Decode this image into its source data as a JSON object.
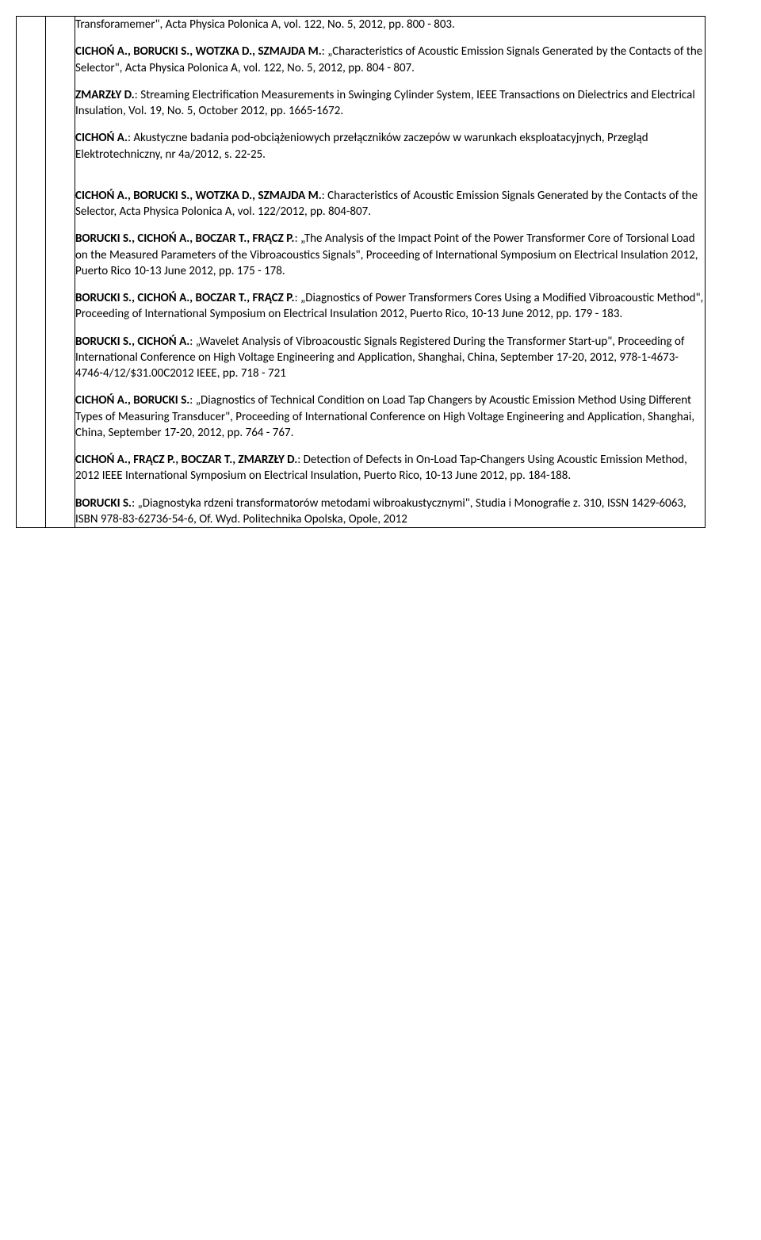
{
  "refs": [
    {
      "authors_html": "",
      "tail": "Transforamemer\", Acta Physica Polonica A, vol. 122, No. 5, 2012, pp. 800 - 803."
    },
    {
      "authors": "CICHOŃ A., BORUCKI S., WOTZKA D., SZMAJDA M.",
      "tail": ": „Characteristics of Acoustic Emission Signals Generated by the Contacts of the Selector\", Acta Physica Polonica A, vol. 122, No. 5, 2012, pp. 804 - 807."
    },
    {
      "authors": "ZMARZŁY D.",
      "tail": ": Streaming Electrification Measurements in Swinging Cylinder System, IEEE Transactions on Dielectrics and Electrical Insulation, Vol. 19, No. 5, October 2012, pp. 1665-1672."
    },
    {
      "authors": "CICHOŃ A.",
      "tail": ": Akustyczne badania pod-obciążeniowych przełączników zaczepów w warunkach eksploatacyjnych, Przegląd Elektrotechniczny, nr 4a/2012, s. 22-25."
    },
    {
      "spacer": true
    },
    {
      "authors": "CICHOŃ A., BORUCKI S., WOTZKA D., SZMAJDA M.",
      "tail": ": Characteristics of Acoustic Emission Signals Generated by the Contacts of the Selector, Acta Physica Polonica A, vol. 122/2012, pp. 804-807."
    },
    {
      "authors": "BORUCKI S., CICHOŃ A., BOCZAR T., FRĄCZ P.",
      "tail": ": „The Analysis of the Impact Point of the Power Transformer Core of Torsional Load on the Measured Parameters of the Vibroacoustics Signals\", Proceeding of International Symposium on Electrical Insulation 2012, Puerto Rico 10-13 June 2012, pp. 175 - 178."
    },
    {
      "authors": "BORUCKI S., CICHOŃ A., BOCZAR T., FRĄCZ P.",
      "tail": ": „Diagnostics of Power Transformers Cores Using a Modified Vibroacoustic Method\", Proceeding of International Symposium on Electrical Insulation 2012, Puerto Rico, 10-13 June 2012, pp. 179 - 183."
    },
    {
      "authors": "BORUCKI S., CICHOŃ A.",
      "tail": ": „Wavelet Analysis of Vibroacoustic Signals Registered During the Transformer Start-up\", Proceeding of International Conference on High Voltage Engineering and Application, Shanghai, China, September 17-20, 2012, 978-1-4673-4746-4/12/$31.00C2012 IEEE, pp. 718 - 721"
    },
    {
      "authors": "CICHOŃ A., BORUCKI S.",
      "tail": ": „Diagnostics of Technical Condition on Load Tap Changers by Acoustic Emission Method Using Different Types of Measuring Transducer\", Proceeding of International Conference on High Voltage Engineering and Application, Shanghai, China, September 17-20, 2012,  pp. 764 - 767."
    },
    {
      "authors": "CICHOŃ A., FRĄCZ P., BOCZAR T., ZMARZŁY D.",
      "tail": ": Detection of Defects in On-Load Tap-Changers Using Acoustic Emission Method, 2012 IEEE International Symposium on Electrical Insulation, Puerto Rico, 10-13 June 2012, pp. 184-188."
    },
    {
      "authors": "BORUCKI S.",
      "tail": ": „Diagnostyka rdzeni transformatorów metodami wibroakustycznymi\", Studia i Monografie z. 310, ISSN 1429-6063, ISBN 978-83-62736-54-6, Of. Wyd. Politechnika Opolska, Opole, 2012"
    }
  ]
}
